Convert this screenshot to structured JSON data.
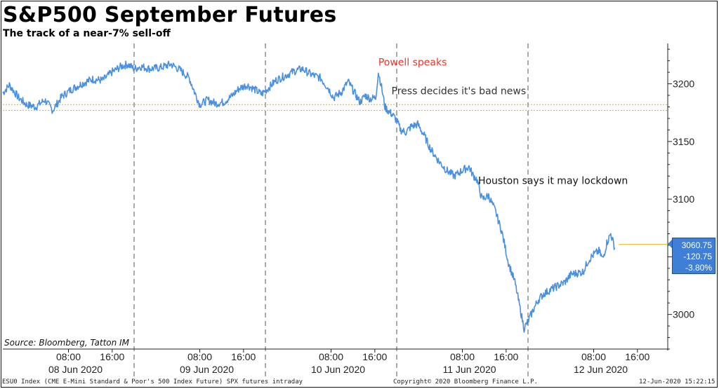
{
  "chart_data": {
    "type": "line",
    "title": "S&P500 September Futures",
    "subtitle": "The track of a near-7% sell-off",
    "ylim": [
      2970,
      3235
    ],
    "yticks": [
      3000,
      3050,
      3100,
      3150,
      3200
    ],
    "ytick_labels": [
      "3000",
      "",
      "3100",
      "3150",
      "3200"
    ],
    "y_axis_side": "right",
    "grid": false,
    "x_days": [
      "08 Jun 2020",
      "09 Jun 2020",
      "10 Jun 2020",
      "11 Jun 2020",
      "12 Jun 2020"
    ],
    "x_hour_labels": [
      "08:00",
      "16:00"
    ],
    "day_separators": "dashed",
    "series": [
      {
        "color": "#4a90e2",
        "points": [
          [
            0.0,
            3192
          ],
          [
            0.05,
            3199
          ],
          [
            0.12,
            3188
          ],
          [
            0.18,
            3182
          ],
          [
            0.25,
            3180
          ],
          [
            0.32,
            3186
          ],
          [
            0.38,
            3177
          ],
          [
            0.45,
            3189
          ],
          [
            0.52,
            3195
          ],
          [
            0.6,
            3200
          ],
          [
            0.68,
            3204
          ],
          [
            0.76,
            3203
          ],
          [
            0.83,
            3210
          ],
          [
            0.9,
            3215
          ],
          [
            0.95,
            3217
          ],
          [
            1.0,
            3213
          ],
          [
            1.05,
            3215
          ],
          [
            1.12,
            3213
          ],
          [
            1.2,
            3214
          ],
          [
            1.28,
            3217
          ],
          [
            1.35,
            3212
          ],
          [
            1.42,
            3205
          ],
          [
            1.46,
            3193
          ],
          [
            1.5,
            3182
          ],
          [
            1.56,
            3186
          ],
          [
            1.62,
            3183
          ],
          [
            1.68,
            3184
          ],
          [
            1.74,
            3189
          ],
          [
            1.8,
            3196
          ],
          [
            1.86,
            3199
          ],
          [
            1.92,
            3195
          ],
          [
            1.97,
            3191
          ],
          [
            2.02,
            3196
          ],
          [
            2.08,
            3203
          ],
          [
            2.15,
            3207
          ],
          [
            2.22,
            3211
          ],
          [
            2.28,
            3213
          ],
          [
            2.35,
            3208
          ],
          [
            2.42,
            3205
          ],
          [
            2.48,
            3196
          ],
          [
            2.52,
            3188
          ],
          [
            2.58,
            3193
          ],
          [
            2.63,
            3202
          ],
          [
            2.68,
            3192
          ],
          [
            2.72,
            3184
          ],
          [
            2.76,
            3190
          ],
          [
            2.8,
            3187
          ],
          [
            2.84,
            3188
          ],
          [
            2.86,
            3210
          ],
          [
            2.88,
            3200
          ],
          [
            2.91,
            3180
          ],
          [
            2.94,
            3176
          ],
          [
            2.97,
            3173
          ],
          [
            3.0,
            3168
          ],
          [
            3.03,
            3160
          ],
          [
            3.07,
            3158
          ],
          [
            3.11,
            3163
          ],
          [
            3.16,
            3165
          ],
          [
            3.21,
            3155
          ],
          [
            3.26,
            3143
          ],
          [
            3.32,
            3133
          ],
          [
            3.38,
            3125
          ],
          [
            3.44,
            3120
          ],
          [
            3.5,
            3125
          ],
          [
            3.55,
            3128
          ],
          [
            3.58,
            3121
          ],
          [
            3.61,
            3117
          ],
          [
            3.65,
            3100
          ],
          [
            3.7,
            3103
          ],
          [
            3.75,
            3090
          ],
          [
            3.8,
            3072
          ],
          [
            3.85,
            3045
          ],
          [
            3.9,
            3028
          ],
          [
            3.94,
            3005
          ],
          [
            3.97,
            2988
          ],
          [
            4.0,
            2994
          ],
          [
            4.04,
            3004
          ],
          [
            4.08,
            3013
          ],
          [
            4.12,
            3018
          ],
          [
            4.18,
            3022
          ],
          [
            4.23,
            3025
          ],
          [
            4.28,
            3028
          ],
          [
            4.33,
            3035
          ],
          [
            4.38,
            3036
          ],
          [
            4.42,
            3037
          ],
          [
            4.46,
            3047
          ],
          [
            4.5,
            3052
          ],
          [
            4.54,
            3055
          ],
          [
            4.57,
            3048
          ],
          [
            4.6,
            3062
          ],
          [
            4.63,
            3070
          ],
          [
            4.66,
            3058
          ]
        ]
      }
    ],
    "reference_lines": [
      3182,
      3177
    ],
    "last_value": 3060.75,
    "last_box": [
      "3060.75",
      "-120.75",
      "-3.80%"
    ],
    "annotations": [
      {
        "text": "Powell speaks",
        "color": "#e03a2f",
        "x": 2.86,
        "y": 3216
      },
      {
        "text": "Press decides it's bad news",
        "color": "#333333",
        "x": 2.96,
        "y": 3191
      },
      {
        "text": "Houston says it may lockdown",
        "color": "#111111",
        "x": 3.62,
        "y": 3113
      }
    ]
  },
  "source": "Source: Bloomberg, Tatton IM",
  "footer": {
    "left": "ESU0 Index (CME E-Mini Standard & Poor's 500 Index Future) SPX futures intraday",
    "middle": "Copyright© 2020 Bloomberg Finance L.P.",
    "right": "12-Jun-2020 15:22:15"
  }
}
